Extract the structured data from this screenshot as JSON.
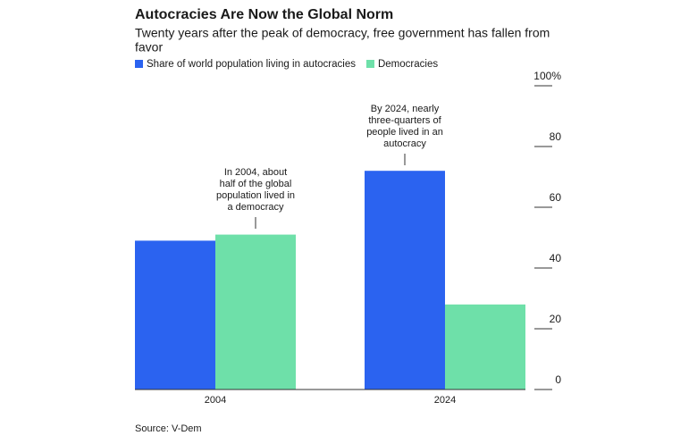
{
  "chart_data": {
    "type": "bar",
    "title": "Autocracies Are Now the Global Norm",
    "subtitle": [
      "Twenty years after the peak of democracy, free government has fallen from",
      "favor"
    ],
    "categories": [
      "2004",
      "2024"
    ],
    "series": [
      {
        "name": "Share of world population living in autocracies",
        "color": "#2b63f0",
        "values": [
          49,
          72
        ]
      },
      {
        "name": "Democracies",
        "color": "#6ee0a9",
        "values": [
          51,
          28
        ]
      }
    ],
    "ylim": [
      0,
      100
    ],
    "yticks": [
      0,
      20,
      40,
      60,
      80,
      {
        "value": 100,
        "label": "100%"
      }
    ],
    "annotations": [
      [
        "In 2004, about",
        "half of the global",
        "population lived in",
        "a democracy"
      ],
      [
        "By 2024, nearly",
        "three-quarters of",
        "people lived in an",
        "autocracy"
      ]
    ],
    "source": "Source: V-Dem"
  }
}
